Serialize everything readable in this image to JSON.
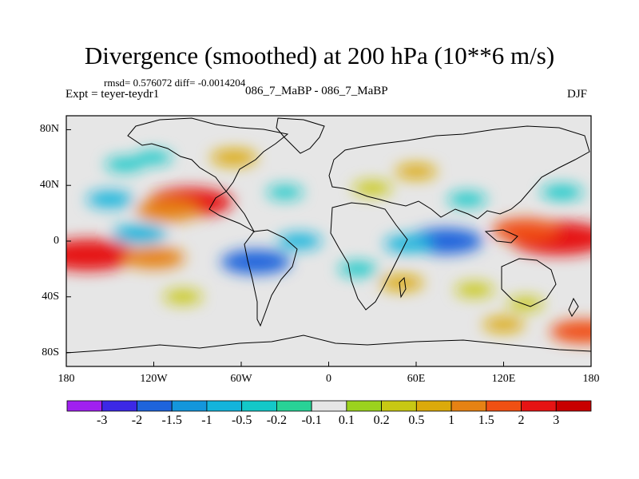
{
  "chart_data": {
    "type": "heatmap",
    "title": "Divergence (smoothed) at 200 hPa (10**6 m/s)",
    "stats_text": "rmsd= 0.576072 diff= -0.0014204",
    "left_label": "Expt = teyer-teydr1",
    "center_label": "086_7_MaBP - 086_7_MaBP",
    "right_label": "DJF",
    "x_ticks": [
      "180",
      "120W",
      "60W",
      "0",
      "60E",
      "120E",
      "180"
    ],
    "x_tick_values": [
      -180,
      -120,
      -60,
      0,
      60,
      120,
      180
    ],
    "y_ticks": [
      "80N",
      "40N",
      "0",
      "40S",
      "80S"
    ],
    "y_tick_values": [
      80,
      40,
      0,
      -40,
      -80
    ],
    "xlim": [
      -180,
      180
    ],
    "ylim": [
      -90,
      90
    ],
    "colorbar": {
      "labels": [
        "-3",
        "-2",
        "-1.5",
        "-1",
        "-0.5",
        "-0.2",
        "-0.1",
        "0.1",
        "0.2",
        "0.5",
        "1",
        "1.5",
        "2",
        "3"
      ],
      "colors": [
        "#a020f0",
        "#3c28e6",
        "#1e64dc",
        "#1496dc",
        "#14b4dc",
        "#14c8c8",
        "#28d296",
        "#e6e6e6",
        "#9bd21e",
        "#c8c814",
        "#dcaa0a",
        "#e68214",
        "#f05014",
        "#e61414",
        "#c80000"
      ]
    },
    "features": [
      {
        "lon": -95,
        "lat": 28,
        "value": 2.2
      },
      {
        "lon": -110,
        "lat": 22,
        "value": 1.4
      },
      {
        "lon": -165,
        "lat": -10,
        "value": 2.6
      },
      {
        "lon": -120,
        "lat": -12,
        "value": 1.3
      },
      {
        "lon": 158,
        "lat": 2,
        "value": 2.8
      },
      {
        "lon": 135,
        "lat": 8,
        "value": 1.5
      },
      {
        "lon": 80,
        "lat": 0,
        "value": -1.8
      },
      {
        "lon": 55,
        "lat": -2,
        "value": -0.8
      },
      {
        "lon": -150,
        "lat": 30,
        "value": -0.7
      },
      {
        "lon": -130,
        "lat": 5,
        "value": -1.0
      },
      {
        "lon": -50,
        "lat": -15,
        "value": -1.6
      },
      {
        "lon": -20,
        "lat": 0,
        "value": -0.6
      },
      {
        "lon": -65,
        "lat": 60,
        "value": 0.7
      },
      {
        "lon": 60,
        "lat": 50,
        "value": 0.5
      },
      {
        "lon": 30,
        "lat": 38,
        "value": 0.4
      },
      {
        "lon": 50,
        "lat": -30,
        "value": 0.6
      },
      {
        "lon": 100,
        "lat": -35,
        "value": 0.4
      },
      {
        "lon": 135,
        "lat": -45,
        "value": 0.3
      },
      {
        "lon": -100,
        "lat": -40,
        "value": 0.4
      },
      {
        "lon": -140,
        "lat": 55,
        "value": -0.4
      },
      {
        "lon": 160,
        "lat": 35,
        "value": -0.5
      },
      {
        "lon": 95,
        "lat": 30,
        "value": -0.4
      },
      {
        "lon": 20,
        "lat": -20,
        "value": -0.4
      },
      {
        "lon": -30,
        "lat": 35,
        "value": -0.3
      },
      {
        "lon": -120,
        "lat": 60,
        "value": -0.3
      },
      {
        "lon": 175,
        "lat": -65,
        "value": 1.5
      },
      {
        "lon": 120,
        "lat": -60,
        "value": 0.5
      }
    ]
  }
}
